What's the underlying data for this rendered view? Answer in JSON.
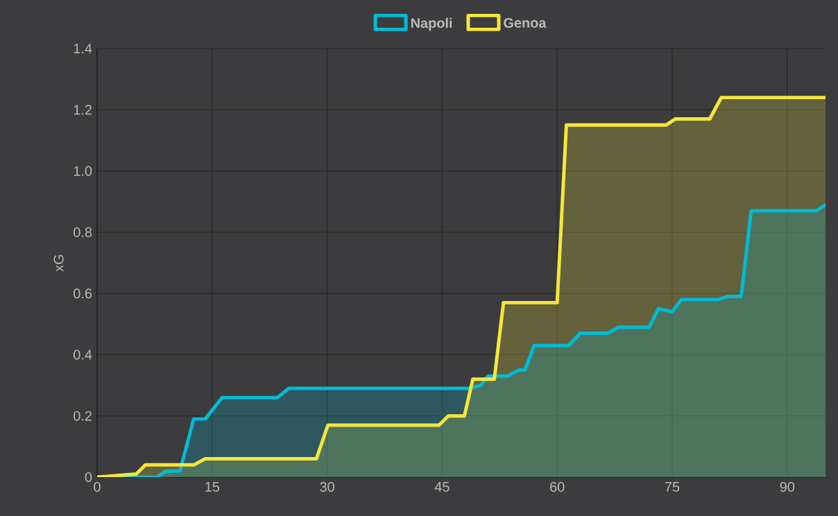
{
  "chart_data": {
    "type": "area",
    "ylabel": "xG",
    "xlim": [
      0,
      95
    ],
    "ylim": [
      0,
      1.4
    ],
    "xticks": [
      0,
      15,
      30,
      45,
      60,
      75,
      90
    ],
    "yticks": [
      0,
      0.2,
      0.4,
      0.6,
      0.8,
      {
        "value": 1,
        "label": "1.0"
      },
      1.2,
      1.4
    ],
    "grid": true,
    "legend": "top",
    "line_style": "solid",
    "marker": "none",
    "series": [
      {
        "name": "Napoli",
        "color": "#00bcd4",
        "x": [
          0,
          7.8,
          9,
          10.8,
          12.6,
          14.1,
          16.3,
          23.5,
          25,
          48.5,
          50,
          51,
          53.5,
          55,
          55.8,
          57,
          61.5,
          63,
          66.6,
          68,
          72,
          73.2,
          75,
          76.2,
          81,
          82.2,
          84,
          85.3,
          93.8,
          95
        ],
        "values": [
          0,
          0,
          0.02,
          0.02,
          0.19,
          0.19,
          0.26,
          0.26,
          0.29,
          0.29,
          0.3,
          0.33,
          0.33,
          0.35,
          0.35,
          0.43,
          0.43,
          0.47,
          0.47,
          0.49,
          0.49,
          0.55,
          0.54,
          0.58,
          0.58,
          0.59,
          0.59,
          0.87,
          0.87,
          0.89
        ]
      },
      {
        "name": "Genoa",
        "color": "#f5e63a",
        "x": [
          0,
          5.1,
          6.3,
          12.6,
          14.1,
          28.6,
          30.1,
          44.6,
          45.8,
          47.9,
          49,
          51.8,
          53,
          60,
          61.2,
          74.2,
          75.4,
          79.9,
          81.4,
          95
        ],
        "values": [
          0,
          0.01,
          0.04,
          0.04,
          0.06,
          0.06,
          0.17,
          0.17,
          0.2,
          0.2,
          0.32,
          0.32,
          0.57,
          0.57,
          1.15,
          1.15,
          1.17,
          1.17,
          1.24,
          1.24
        ]
      }
    ]
  }
}
